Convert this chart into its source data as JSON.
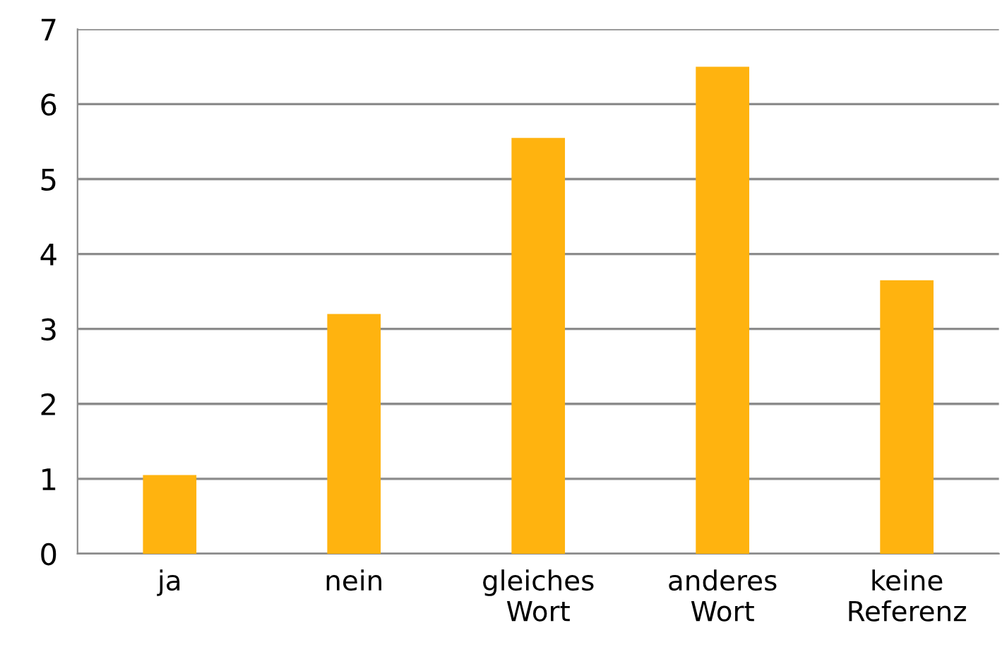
{
  "chart_data": {
    "type": "bar",
    "categories": [
      "ja",
      "nein",
      "gleiches\nWort",
      "anderes\nWort",
      "keine\nReferenz"
    ],
    "values": [
      1.05,
      3.2,
      5.55,
      6.5,
      3.65
    ],
    "color": "#ffb30f",
    "ylim": [
      0,
      7
    ],
    "yticks": [
      0,
      1,
      2,
      3,
      4,
      5,
      6,
      7
    ],
    "grid": "y",
    "legend": false
  }
}
